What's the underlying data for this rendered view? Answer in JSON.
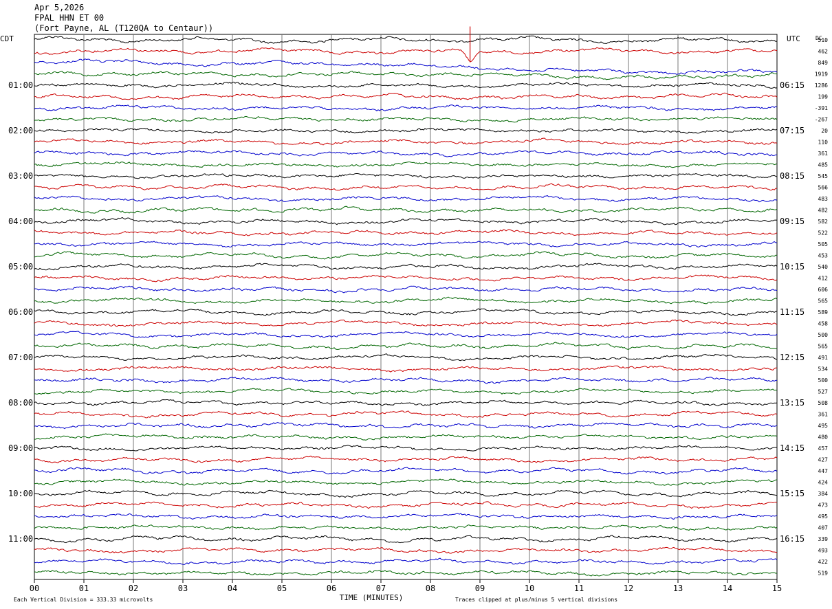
{
  "header": {
    "date": "Apr 5,2026",
    "station": "FPAL HHN ET 00",
    "location": "(Fort Payne, AL (T120QA to Centaur))"
  },
  "left_zone": "CDT",
  "right_zone": "UTC",
  "dc_header": "DC",
  "colors": [
    "#000000",
    "#cc0000",
    "#0000cc",
    "#006600"
  ],
  "chart_data": {
    "type": "line",
    "title": "",
    "xlabel": "TIME (MINUTES)",
    "xlim": [
      0,
      15
    ],
    "x_ticks": [
      "00",
      "01",
      "02",
      "03",
      "04",
      "05",
      "06",
      "07",
      "08",
      "09",
      "10",
      "11",
      "12",
      "13",
      "14",
      "15"
    ],
    "trace_count": 48,
    "left_hour_labels": [
      {
        "row": 4,
        "text": "01:00"
      },
      {
        "row": 8,
        "text": "02:00"
      },
      {
        "row": 12,
        "text": "03:00"
      },
      {
        "row": 16,
        "text": "04:00"
      },
      {
        "row": 20,
        "text": "05:00"
      },
      {
        "row": 24,
        "text": "06:00"
      },
      {
        "row": 28,
        "text": "07:00"
      },
      {
        "row": 32,
        "text": "08:00"
      },
      {
        "row": 36,
        "text": "09:00"
      },
      {
        "row": 40,
        "text": "10:00"
      },
      {
        "row": 44,
        "text": "11:00"
      }
    ],
    "right_hour_labels": [
      {
        "row": 4,
        "text": "06:15"
      },
      {
        "row": 8,
        "text": "07:15"
      },
      {
        "row": 12,
        "text": "08:15"
      },
      {
        "row": 16,
        "text": "09:15"
      },
      {
        "row": 20,
        "text": "10:15"
      },
      {
        "row": 24,
        "text": "11:15"
      },
      {
        "row": 28,
        "text": "12:15"
      },
      {
        "row": 32,
        "text": "13:15"
      },
      {
        "row": 36,
        "text": "14:15"
      },
      {
        "row": 40,
        "text": "15:15"
      },
      {
        "row": 44,
        "text": "16:15"
      }
    ],
    "dc_offsets": [
      "510",
      "462",
      "849",
      "1919",
      "1286",
      "199",
      "-391",
      "-267",
      "20",
      "110",
      "361",
      "485",
      "545",
      "566",
      "483",
      "482",
      "582",
      "522",
      "505",
      "453",
      "540",
      "412",
      "606",
      "565",
      "589",
      "458",
      "500",
      "565",
      "491",
      "534",
      "500",
      "527",
      "508",
      "361",
      "495",
      "480",
      "457",
      "427",
      "447",
      "424",
      "384",
      "473",
      "495",
      "407",
      "339",
      "493",
      "422",
      "519"
    ],
    "events": [
      {
        "trace": 1,
        "minute": 8.8,
        "label": ""
      }
    ],
    "footer_left": "Each Vertical Division =  333.33 microvolts",
    "footer_right": "Traces clipped at plus/minus 5 vertical divisions"
  }
}
